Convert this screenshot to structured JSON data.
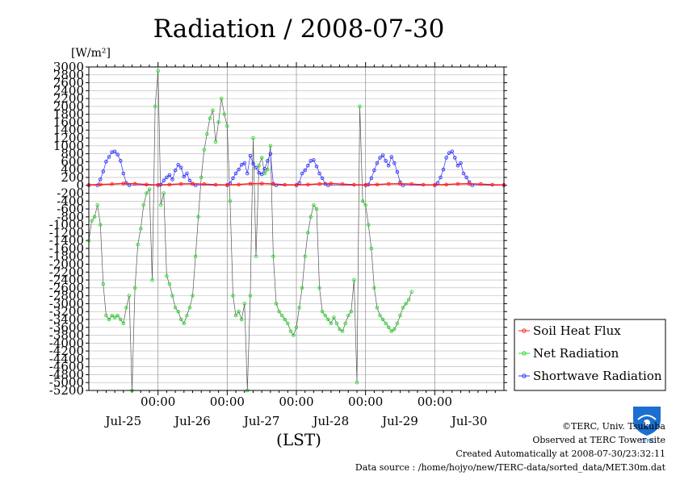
{
  "chart_data": {
    "type": "line",
    "title": "Radiation / 2008-07-30",
    "ylabel": "[W/m²]",
    "xlabel": "(LST)",
    "ylim": [
      -5200,
      3000
    ],
    "ytick_step": 200,
    "xlim_hours": [
      0,
      144
    ],
    "x_ticks": [
      {
        "hour": 24,
        "time": "00:00",
        "day": "Jul-26"
      },
      {
        "hour": 48,
        "time": "00:00",
        "day": "Jul-27"
      },
      {
        "hour": 72,
        "time": "00:00",
        "day": "Jul-28"
      },
      {
        "hour": 96,
        "time": "00:00",
        "day": "Jul-29"
      },
      {
        "hour": 120,
        "time": "00:00",
        "day": "Jul-30"
      }
    ],
    "day_labels": [
      {
        "hour": 12,
        "label": "Jul-25"
      },
      {
        "hour": 36,
        "label": "Jul-26"
      },
      {
        "hour": 60,
        "label": "Jul-27"
      },
      {
        "hour": 84,
        "label": "Jul-28"
      },
      {
        "hour": 108,
        "label": "Jul-29"
      },
      {
        "hour": 132,
        "label": "Jul-30"
      }
    ],
    "legend_position": "right",
    "series": [
      {
        "name": "Soil Heat Flux",
        "color": "#ff2020",
        "points": [
          [
            0,
            10
          ],
          [
            4,
            20
          ],
          [
            8,
            30
          ],
          [
            12,
            45
          ],
          [
            16,
            40
          ],
          [
            20,
            20
          ],
          [
            24,
            10
          ],
          [
            28,
            20
          ],
          [
            32,
            35
          ],
          [
            36,
            40
          ],
          [
            40,
            30
          ],
          [
            44,
            15
          ],
          [
            48,
            10
          ],
          [
            52,
            20
          ],
          [
            56,
            40
          ],
          [
            60,
            45
          ],
          [
            64,
            35
          ],
          [
            68,
            15
          ],
          [
            72,
            10
          ],
          [
            76,
            20
          ],
          [
            80,
            35
          ],
          [
            84,
            45
          ],
          [
            88,
            30
          ],
          [
            92,
            15
          ],
          [
            96,
            10
          ],
          [
            100,
            20
          ],
          [
            104,
            35
          ],
          [
            108,
            40
          ],
          [
            112,
            30
          ],
          [
            116,
            15
          ],
          [
            120,
            10
          ],
          [
            124,
            20
          ],
          [
            128,
            35
          ],
          [
            132,
            40
          ],
          [
            136,
            30
          ],
          [
            140,
            15
          ],
          [
            144,
            10
          ]
        ]
      },
      {
        "name": "Net Radiation",
        "color": "#22dd22",
        "points": [
          [
            0,
            -1400
          ],
          [
            1,
            -900
          ],
          [
            2,
            -800
          ],
          [
            3,
            -500
          ],
          [
            4,
            -1000
          ],
          [
            5,
            -2500
          ],
          [
            6,
            -3300
          ],
          [
            7,
            -3400
          ],
          [
            8,
            -3300
          ],
          [
            9,
            -3350
          ],
          [
            10,
            -3300
          ],
          [
            11,
            -3400
          ],
          [
            12,
            -3500
          ],
          [
            13,
            -3100
          ],
          [
            14,
            -2800
          ],
          [
            15,
            -5200
          ],
          [
            16,
            -2600
          ],
          [
            17,
            -1500
          ],
          [
            18,
            -1100
          ],
          [
            19,
            -500
          ],
          [
            20,
            -200
          ],
          [
            21,
            -100
          ],
          [
            22,
            -2400
          ],
          [
            23,
            2000
          ],
          [
            24,
            2900
          ],
          [
            25,
            -500
          ],
          [
            26,
            -200
          ],
          [
            27,
            -2300
          ],
          [
            28,
            -2500
          ],
          [
            29,
            -2800
          ],
          [
            30,
            -3100
          ],
          [
            31,
            -3200
          ],
          [
            32,
            -3400
          ],
          [
            33,
            -3500
          ],
          [
            34,
            -3300
          ],
          [
            35,
            -3100
          ],
          [
            36,
            -2800
          ],
          [
            37,
            -1800
          ],
          [
            38,
            -800
          ],
          [
            39,
            200
          ],
          [
            40,
            900
          ],
          [
            41,
            1300
          ],
          [
            42,
            1700
          ],
          [
            43,
            1900
          ],
          [
            44,
            1100
          ],
          [
            45,
            1600
          ],
          [
            46,
            2200
          ],
          [
            47,
            1800
          ],
          [
            48,
            1500
          ],
          [
            49,
            -400
          ],
          [
            50,
            -2800
          ],
          [
            51,
            -3300
          ],
          [
            52,
            -3200
          ],
          [
            53,
            -3400
          ],
          [
            54,
            -3000
          ],
          [
            55,
            -5200
          ],
          [
            56,
            -2800
          ],
          [
            57,
            1200
          ],
          [
            58,
            -1800
          ],
          [
            59,
            500
          ],
          [
            60,
            700
          ],
          [
            61,
            300
          ],
          [
            62,
            400
          ],
          [
            63,
            1000
          ],
          [
            64,
            -1800
          ],
          [
            65,
            -3000
          ],
          [
            66,
            -3200
          ],
          [
            67,
            -3300
          ],
          [
            68,
            -3400
          ],
          [
            69,
            -3500
          ],
          [
            70,
            -3700
          ],
          [
            71,
            -3800
          ],
          [
            72,
            -3600
          ],
          [
            73,
            -3100
          ],
          [
            74,
            -2600
          ],
          [
            75,
            -1800
          ],
          [
            76,
            -1200
          ],
          [
            77,
            -800
          ],
          [
            78,
            -500
          ],
          [
            79,
            -600
          ],
          [
            80,
            -2600
          ],
          [
            81,
            -3200
          ],
          [
            82,
            -3300
          ],
          [
            83,
            -3400
          ],
          [
            84,
            -3500
          ],
          [
            85,
            -3350
          ],
          [
            86,
            -3500
          ],
          [
            87,
            -3650
          ],
          [
            88,
            -3700
          ],
          [
            89,
            -3500
          ],
          [
            90,
            -3300
          ],
          [
            91,
            -3200
          ],
          [
            92,
            -2400
          ],
          [
            93,
            -5000
          ],
          [
            94,
            2000
          ],
          [
            95,
            -400
          ],
          [
            96,
            -500
          ],
          [
            97,
            -1000
          ],
          [
            98,
            -1600
          ],
          [
            99,
            -2600
          ],
          [
            100,
            -3100
          ],
          [
            101,
            -3300
          ],
          [
            102,
            -3400
          ],
          [
            103,
            -3500
          ],
          [
            104,
            -3600
          ],
          [
            105,
            -3700
          ],
          [
            106,
            -3650
          ],
          [
            107,
            -3500
          ],
          [
            108,
            -3300
          ],
          [
            109,
            -3100
          ],
          [
            110,
            -3000
          ],
          [
            111,
            -2900
          ],
          [
            112,
            -2700
          ]
        ]
      },
      {
        "name": "Shortwave Radiation",
        "color": "#3030ff",
        "points": [
          [
            0,
            0
          ],
          [
            3,
            0
          ],
          [
            4,
            150
          ],
          [
            5,
            350
          ],
          [
            6,
            600
          ],
          [
            7,
            720
          ],
          [
            8,
            840
          ],
          [
            9,
            860
          ],
          [
            10,
            780
          ],
          [
            11,
            620
          ],
          [
            12,
            300
          ],
          [
            13,
            60
          ],
          [
            14,
            0
          ],
          [
            24,
            0
          ],
          [
            25,
            20
          ],
          [
            26,
            120
          ],
          [
            27,
            200
          ],
          [
            28,
            260
          ],
          [
            29,
            150
          ],
          [
            30,
            380
          ],
          [
            31,
            520
          ],
          [
            32,
            450
          ],
          [
            33,
            220
          ],
          [
            34,
            300
          ],
          [
            35,
            120
          ],
          [
            36,
            40
          ],
          [
            37,
            0
          ],
          [
            48,
            0
          ],
          [
            49,
            50
          ],
          [
            50,
            180
          ],
          [
            51,
            300
          ],
          [
            52,
            400
          ],
          [
            53,
            520
          ],
          [
            54,
            560
          ],
          [
            55,
            300
          ],
          [
            56,
            750
          ],
          [
            57,
            550
          ],
          [
            58,
            450
          ],
          [
            59,
            320
          ],
          [
            60,
            280
          ],
          [
            61,
            420
          ],
          [
            62,
            620
          ],
          [
            63,
            800
          ],
          [
            64,
            40
          ],
          [
            65,
            0
          ],
          [
            72,
            0
          ],
          [
            73,
            60
          ],
          [
            74,
            300
          ],
          [
            75,
            380
          ],
          [
            76,
            500
          ],
          [
            77,
            620
          ],
          [
            78,
            640
          ],
          [
            79,
            480
          ],
          [
            80,
            300
          ],
          [
            81,
            180
          ],
          [
            82,
            40
          ],
          [
            83,
            0
          ],
          [
            96,
            0
          ],
          [
            97,
            20
          ],
          [
            98,
            180
          ],
          [
            99,
            380
          ],
          [
            100,
            560
          ],
          [
            101,
            700
          ],
          [
            102,
            760
          ],
          [
            103,
            620
          ],
          [
            104,
            500
          ],
          [
            105,
            720
          ],
          [
            106,
            560
          ],
          [
            107,
            340
          ],
          [
            108,
            80
          ],
          [
            109,
            0
          ],
          [
            120,
            0
          ],
          [
            121,
            60
          ],
          [
            122,
            200
          ],
          [
            123,
            400
          ],
          [
            124,
            700
          ],
          [
            125,
            820
          ],
          [
            126,
            860
          ],
          [
            127,
            700
          ],
          [
            128,
            500
          ],
          [
            129,
            560
          ],
          [
            130,
            300
          ],
          [
            131,
            200
          ],
          [
            132,
            80
          ],
          [
            133,
            0
          ],
          [
            144,
            0
          ]
        ]
      }
    ]
  },
  "footer": {
    "copyright": "©TERC, Univ. Tsukuba",
    "observed": "Observed at TERC Tower site",
    "created": "Created Automatically at 2008-07-30/23:32:11",
    "source": "Data source : /home/hojyo/new/TERC-data/sorted_data/MET.30m.dat"
  },
  "logo": {
    "text": "TERC"
  }
}
